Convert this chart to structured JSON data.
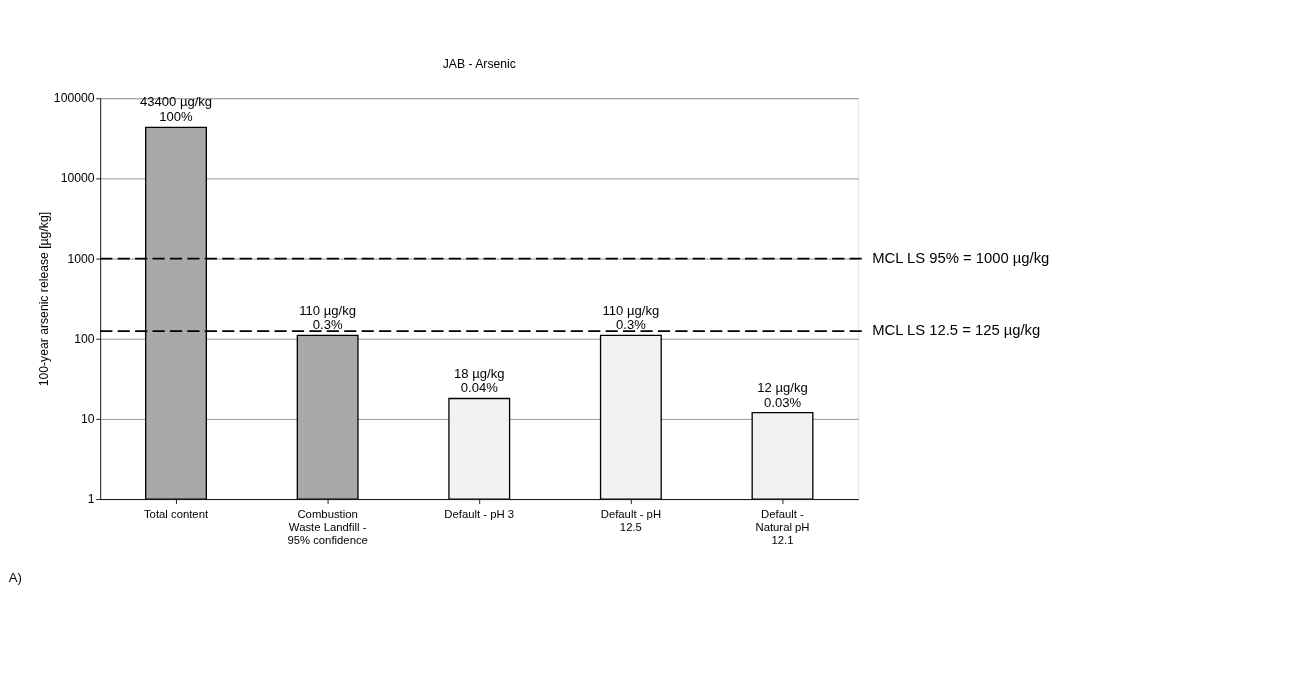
{
  "chart_data": {
    "type": "bar",
    "title": "JAB - Arsenic",
    "ylabel": "100-year arsenic release [µg/kg]",
    "categories": [
      "Total content",
      "Combustion\nWaste Landfill -\n95% confidence",
      "Default - pH 3",
      "Default - pH\n12.5",
      "Default -\nNatural pH\n12.1"
    ],
    "values": [
      43400,
      110,
      18,
      110,
      12
    ],
    "colors": [
      "#a9a9a9",
      "#a9a9a9",
      "#f2f2f2",
      "#f2f2f2",
      "#f2f2f2"
    ],
    "value_labels": [
      "43400 µg/kg\n100%",
      "110 µg/kg\n0.3%",
      "18 µg/kg\n0.04%",
      "110 µg/kg\n0.3%",
      "12 µg/kg\n0.03%"
    ],
    "log": "y",
    "ylim": [
      1,
      100000
    ],
    "yticks": [
      1,
      10,
      100,
      1000,
      10000,
      100000
    ],
    "grid": "y",
    "ref_lines": [
      {
        "axis": "y",
        "value": 1000,
        "label": "MCL LS 95% = 1000 µg/kg",
        "color": "#000000",
        "line_style": "dashed"
      },
      {
        "axis": "y",
        "value": 125,
        "label": "MCL LS 12.5 = 125 µg/kg",
        "color": "#000000",
        "line_style": "dashed"
      }
    ],
    "annotations": [
      "A)"
    ]
  }
}
